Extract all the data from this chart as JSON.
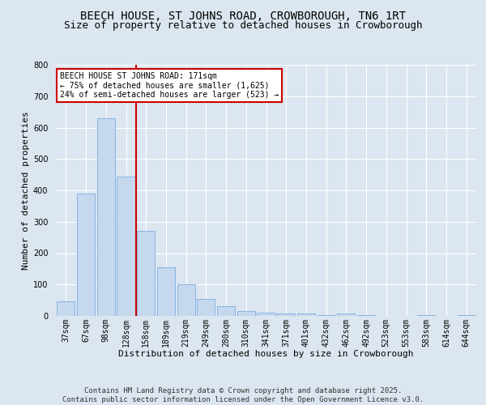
{
  "title": "BEECH HOUSE, ST JOHNS ROAD, CROWBOROUGH, TN6 1RT",
  "subtitle": "Size of property relative to detached houses in Crowborough",
  "xlabel": "Distribution of detached houses by size in Crowborough",
  "ylabel": "Number of detached properties",
  "categories": [
    "37sqm",
    "67sqm",
    "98sqm",
    "128sqm",
    "158sqm",
    "189sqm",
    "219sqm",
    "249sqm",
    "280sqm",
    "310sqm",
    "341sqm",
    "371sqm",
    "401sqm",
    "432sqm",
    "462sqm",
    "492sqm",
    "523sqm",
    "553sqm",
    "583sqm",
    "614sqm",
    "644sqm"
  ],
  "values": [
    47,
    390,
    630,
    445,
    270,
    155,
    100,
    55,
    30,
    15,
    10,
    7,
    8,
    3,
    8,
    3,
    0,
    0,
    3,
    0,
    2
  ],
  "bar_color": "#c5d8ee",
  "bar_edge_color": "#7aade0",
  "fig_bg_color": "#dce6f0",
  "plot_bg_color": "#dce6f0",
  "grid_color": "#ffffff",
  "annotation_text": "BEECH HOUSE ST JOHNS ROAD: 171sqm\n← 75% of detached houses are smaller (1,625)\n24% of semi-detached houses are larger (523) →",
  "annotation_box_facecolor": "#ffffff",
  "annotation_box_edgecolor": "#cc0000",
  "vline_color": "#cc0000",
  "vline_pos": 3.5,
  "ylim": [
    0,
    800
  ],
  "yticks": [
    0,
    100,
    200,
    300,
    400,
    500,
    600,
    700,
    800
  ],
  "footer": "Contains HM Land Registry data © Crown copyright and database right 2025.\nContains public sector information licensed under the Open Government Licence v3.0.",
  "title_fontsize": 10,
  "subtitle_fontsize": 9,
  "xlabel_fontsize": 8,
  "ylabel_fontsize": 8,
  "tick_fontsize": 7,
  "annot_fontsize": 7,
  "footer_fontsize": 6.5
}
